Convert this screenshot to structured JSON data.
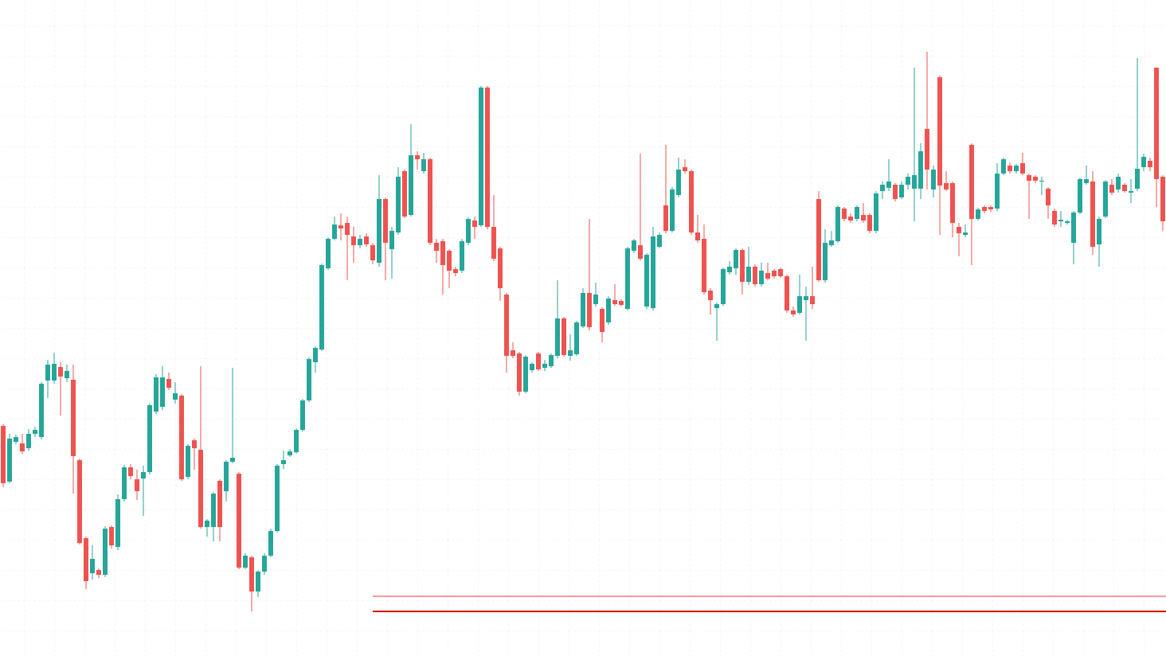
{
  "chart_data": {
    "type": "candlestick",
    "up_color": "#26a69a",
    "down_color": "#ef5350",
    "ylim": [
      0,
      824
    ],
    "levels": [
      {
        "value": 75,
        "color": "#e53935"
      },
      {
        "value": 56,
        "color": "#d50000"
      }
    ],
    "open": [
      289,
      219,
      269,
      267,
      261,
      279,
      275,
      346,
      346,
      363,
      349,
      347,
      246,
      148,
      104,
      108,
      102,
      162,
      137,
      197,
      237,
      222,
      223,
      231,
      307,
      313,
      348,
      322,
      327,
      225,
      271,
      259,
      162,
      162,
      220,
      207,
      244,
      229,
      111,
      124,
      81,
      106,
      126,
      157,
      241,
      252,
      256,
      284,
      321,
      369,
      385,
      487,
      524,
      541,
      544,
      527,
      516,
      527,
      516,
      494,
      574,
      511,
      532,
      609,
      554,
      629,
      609,
      624,
      519,
      521,
      509,
      486,
      484,
      519,
      547,
      541,
      714,
      539,
      512,
      454,
      384,
      380,
      332,
      359,
      380,
      362,
      364,
      377,
      424,
      377,
      379,
      414,
      456,
      442,
      436,
      419,
      447,
      446,
      436,
      509,
      516,
      439,
      437,
      514,
      566,
      534,
      579,
      614,
      609,
      532,
      524,
      459,
      437,
      442,
      482,
      487,
      510,
      470,
      489,
      467,
      481,
      484,
      486,
      477,
      434,
      431,
      447,
      452,
      574,
      472,
      516,
      521,
      562,
      552,
      549,
      554,
      554,
      534,
      584,
      588,
      592,
      576,
      592,
      587,
      587,
      662,
      586,
      727,
      594,
      594,
      539,
      529,
      642,
      549,
      564,
      564,
      562,
      606,
      616,
      609,
      619,
      604,
      602,
      596,
      587,
      559,
      546,
      544,
      519,
      557,
      594,
      596,
      517,
      552,
      592,
      586,
      592,
      582,
      587,
      614,
      622,
      739,
      602
    ],
    "high": [
      291,
      279,
      278,
      279,
      285,
      288,
      344,
      372,
      381,
      369,
      366,
      366,
      248,
      150,
      139,
      110,
      163,
      164,
      203,
      240,
      241,
      234,
      239,
      317,
      354,
      364,
      356,
      344,
      329,
      266,
      273,
      364,
      172,
      206,
      222,
      246,
      362,
      231,
      129,
      126,
      108,
      129,
      160,
      241,
      258,
      260,
      286,
      323,
      375,
      389,
      493,
      526,
      552,
      556,
      552,
      539,
      529,
      531,
      519,
      604,
      576,
      539,
      614,
      611,
      668,
      634,
      632,
      626,
      524,
      524,
      511,
      489,
      524,
      551,
      552,
      716,
      716,
      579,
      514,
      456,
      394,
      382,
      378,
      369,
      382,
      372,
      380,
      472,
      426,
      404,
      421,
      462,
      549,
      469,
      438,
      452,
      467,
      448,
      514,
      524,
      631,
      506,
      539,
      532,
      642,
      589,
      626,
      624,
      611,
      554,
      542,
      462,
      444,
      488,
      496,
      512,
      512,
      514,
      492,
      494,
      494,
      486,
      488,
      479,
      439,
      479,
      464,
      489,
      584,
      536,
      534,
      566,
      564,
      556,
      566,
      569,
      556,
      584,
      596,
      624,
      594,
      596,
      606,
      739,
      644,
      759,
      616,
      729,
      609,
      596,
      544,
      542,
      644,
      563,
      566,
      566,
      619,
      626,
      620,
      618,
      632,
      606,
      604,
      602,
      589,
      562,
      559,
      548,
      559,
      601,
      616,
      609,
      552,
      598,
      599,
      606,
      594,
      599,
      751,
      631,
      626,
      739,
      604
    ],
    "low": [
      212,
      217,
      266,
      254,
      258,
      275,
      272,
      324,
      342,
      302,
      344,
      204,
      140,
      84,
      96,
      98,
      99,
      135,
      133,
      194,
      222,
      196,
      176,
      228,
      304,
      309,
      334,
      317,
      220,
      222,
      234,
      160,
      150,
      144,
      144,
      194,
      242,
      109,
      109,
      56,
      74,
      102,
      124,
      155,
      235,
      250,
      254,
      282,
      319,
      356,
      383,
      485,
      522,
      522,
      472,
      494,
      512,
      514,
      492,
      489,
      472,
      474,
      529,
      550,
      552,
      611,
      606,
      516,
      494,
      454,
      462,
      477,
      481,
      516,
      524,
      539,
      536,
      496,
      446,
      356,
      374,
      327,
      330,
      356,
      358,
      358,
      362,
      374,
      376,
      371,
      377,
      412,
      409,
      439,
      394,
      416,
      440,
      439,
      434,
      506,
      497,
      436,
      434,
      512,
      531,
      532,
      576,
      606,
      529,
      519,
      454,
      429,
      396,
      440,
      479,
      479,
      454,
      466,
      464,
      464,
      472,
      474,
      475,
      431,
      426,
      429,
      396,
      436,
      470,
      469,
      514,
      519,
      546,
      544,
      546,
      544,
      531,
      531,
      574,
      584,
      571,
      574,
      586,
      546,
      574,
      586,
      576,
      529,
      584,
      526,
      502,
      526,
      491,
      547,
      556,
      558,
      559,
      604,
      606,
      606,
      604,
      549,
      594,
      579,
      549,
      539,
      539,
      542,
      492,
      555,
      592,
      504,
      489,
      550,
      579,
      582,
      582,
      569,
      584,
      609,
      609,
      564,
      534
    ],
    "close": [
      217,
      273,
      275,
      257,
      279,
      284,
      342,
      366,
      367,
      351,
      358,
      251,
      142,
      94,
      122,
      102,
      160,
      139,
      197,
      237,
      226,
      207,
      231,
      315,
      350,
      350,
      337,
      330,
      222,
      264,
      261,
      162,
      170,
      204,
      162,
      244,
      249,
      111,
      126,
      81,
      106,
      126,
      157,
      239,
      246,
      257,
      284,
      321,
      373,
      387,
      491,
      524,
      542,
      537,
      529,
      516,
      524,
      517,
      497,
      574,
      519,
      534,
      602,
      552,
      629,
      624,
      624,
      519,
      509,
      491,
      484,
      481,
      521,
      549,
      539,
      714,
      539,
      499,
      462,
      377,
      377,
      332,
      376,
      367,
      360,
      367,
      378,
      424,
      378,
      384,
      419,
      456,
      413,
      454,
      407,
      449,
      442,
      441,
      512,
      522,
      499,
      504,
      527,
      529,
      534,
      586,
      611,
      609,
      532,
      522,
      457,
      447,
      442,
      486,
      489,
      510,
      470,
      489,
      467,
      484,
      474,
      477,
      477,
      434,
      429,
      452,
      452,
      442,
      472,
      519,
      522,
      564,
      549,
      547,
      564,
      547,
      534,
      581,
      592,
      596,
      574,
      592,
      602,
      604,
      634,
      611,
      611,
      591,
      586,
      544,
      531,
      532,
      549,
      561,
      559,
      561,
      606,
      624,
      609,
      616,
      606,
      597,
      597,
      597,
      566,
      542,
      548,
      546,
      557,
      599,
      599,
      514,
      549,
      596,
      582,
      602,
      584,
      584,
      612,
      627,
      614,
      599,
      546
    ]
  }
}
